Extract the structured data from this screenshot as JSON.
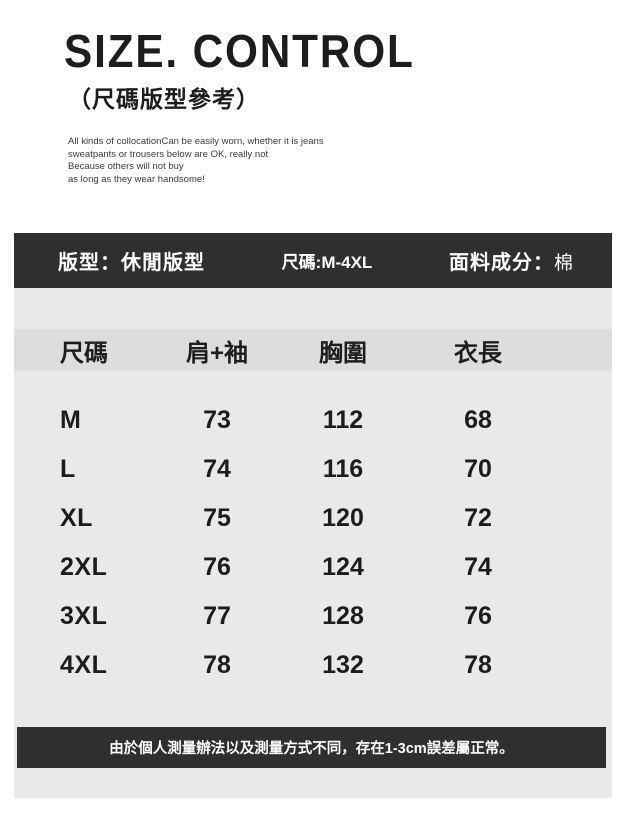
{
  "header": {
    "title": "SIZE. CONTROL",
    "subtitle": "（尺碼版型參考）",
    "description": "All kinds of collocationCan be easily worn, whether it is jeans\nsweatpants or trousers below are OK, really not\nBecause others will not buy\nas long as they wear handsome!"
  },
  "info_bar": {
    "fit_label": "版型：休閒版型",
    "size_range_label": "尺碼:M-4XL",
    "fabric_label": "面料成分：",
    "fabric_value": "棉"
  },
  "size_table": {
    "columns": [
      "尺碼",
      "肩+袖",
      "胸圍",
      "衣長"
    ],
    "rows": [
      {
        "size": "M",
        "shoulder_sleeve": "73",
        "chest": "112",
        "length": "68"
      },
      {
        "size": "L",
        "shoulder_sleeve": "74",
        "chest": "116",
        "length": "70"
      },
      {
        "size": "XL",
        "shoulder_sleeve": "75",
        "chest": "120",
        "length": "72"
      },
      {
        "size": "2XL",
        "shoulder_sleeve": "76",
        "chest": "124",
        "length": "74"
      },
      {
        "size": "3XL",
        "shoulder_sleeve": "77",
        "chest": "128",
        "length": "76"
      },
      {
        "size": "4XL",
        "shoulder_sleeve": "78",
        "chest": "132",
        "length": "78"
      }
    ]
  },
  "footer": {
    "note": "由於個人測量辦法以及測量方式不同，存在1-3cm誤差屬正常。"
  },
  "colors": {
    "bar_bg": "#2f2f2f",
    "panel_bg": "#e9e9e9",
    "header_band_bg": "#dddddd",
    "title_color": "#1d1d1d"
  }
}
